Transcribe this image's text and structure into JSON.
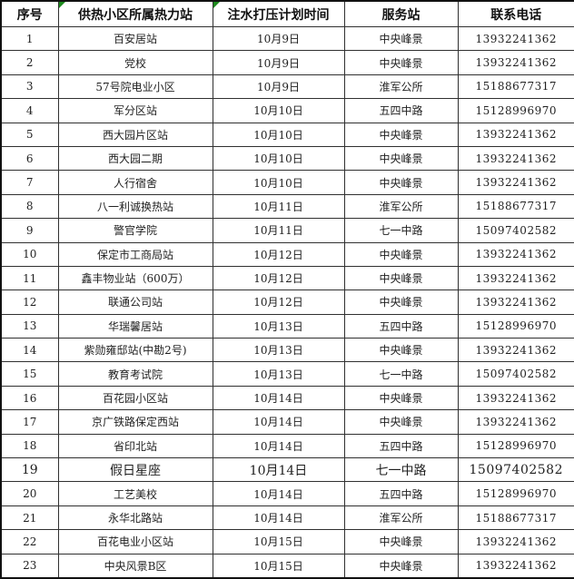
{
  "colors": {
    "grid_line": "#303030",
    "outer_border": "#111111",
    "text": "#1f1f1f",
    "error_indicator_green": "#1d8a1d",
    "background": "#ffffff"
  },
  "table": {
    "columns": [
      {
        "key": "id",
        "label": "序号",
        "error_indicator": false
      },
      {
        "key": "station",
        "label": "供热小区所属热力站",
        "error_indicator": true
      },
      {
        "key": "date",
        "label": "注水打压计划时间",
        "error_indicator": true
      },
      {
        "key": "service",
        "label": "服务站",
        "error_indicator": false
      },
      {
        "key": "phone",
        "label": "联系电话",
        "error_indicator": false
      }
    ],
    "rows": [
      {
        "id": "1",
        "station": "百安居站",
        "date": "10月9日",
        "service": "中央峰景",
        "phone": "13932241362",
        "large": false
      },
      {
        "id": "2",
        "station": "党校",
        "date": "10月9日",
        "service": "中央峰景",
        "phone": "13932241362",
        "large": false
      },
      {
        "id": "3",
        "station": "57号院电业小区",
        "date": "10月9日",
        "service": "淮军公所",
        "phone": "15188677317",
        "large": false
      },
      {
        "id": "4",
        "station": "军分区站",
        "date": "10月10日",
        "service": "五四中路",
        "phone": "15128996970",
        "large": false
      },
      {
        "id": "5",
        "station": "西大园片区站",
        "date": "10月10日",
        "service": "中央峰景",
        "phone": "13932241362",
        "large": false
      },
      {
        "id": "6",
        "station": "西大园二期",
        "date": "10月10日",
        "service": "中央峰景",
        "phone": "13932241362",
        "large": false
      },
      {
        "id": "7",
        "station": "人行宿舍",
        "date": "10月10日",
        "service": "中央峰景",
        "phone": "13932241362",
        "large": false
      },
      {
        "id": "8",
        "station": "八一利诚换热站",
        "date": "10月11日",
        "service": "淮军公所",
        "phone": "15188677317",
        "large": false
      },
      {
        "id": "9",
        "station": "警官学院",
        "date": "10月11日",
        "service": "七一中路",
        "phone": "15097402582",
        "large": false
      },
      {
        "id": "10",
        "station": "保定市工商局站",
        "date": "10月12日",
        "service": "中央峰景",
        "phone": "13932241362",
        "large": false
      },
      {
        "id": "11",
        "station": "鑫丰物业站（600万）",
        "date": "10月12日",
        "service": "中央峰景",
        "phone": "13932241362",
        "large": false
      },
      {
        "id": "12",
        "station": "联通公司站",
        "date": "10月12日",
        "service": "中央峰景",
        "phone": "13932241362",
        "large": false
      },
      {
        "id": "13",
        "station": "华瑞馨居站",
        "date": "10月13日",
        "service": "五四中路",
        "phone": "15128996970",
        "large": false
      },
      {
        "id": "14",
        "station": "紫勋雍邸站(中勘2号)",
        "date": "10月13日",
        "service": "中央峰景",
        "phone": "13932241362",
        "large": false
      },
      {
        "id": "15",
        "station": "教育考试院",
        "date": "10月13日",
        "service": "七一中路",
        "phone": "15097402582",
        "large": false
      },
      {
        "id": "16",
        "station": "百花园小区站",
        "date": "10月14日",
        "service": "中央峰景",
        "phone": "13932241362",
        "large": false
      },
      {
        "id": "17",
        "station": "京广铁路保定西站",
        "date": "10月14日",
        "service": "中央峰景",
        "phone": "13932241362",
        "large": false
      },
      {
        "id": "18",
        "station": "省印北站",
        "date": "10月14日",
        "service": "五四中路",
        "phone": "15128996970",
        "large": false
      },
      {
        "id": "19",
        "station": "假日星座",
        "date": "10月14日",
        "service": "七一中路",
        "phone": "15097402582",
        "large": true
      },
      {
        "id": "20",
        "station": "工艺美校",
        "date": "10月14日",
        "service": "五四中路",
        "phone": "15128996970",
        "large": false
      },
      {
        "id": "21",
        "station": "永华北路站",
        "date": "10月14日",
        "service": "淮军公所",
        "phone": "15188677317",
        "large": false
      },
      {
        "id": "22",
        "station": "百花电业小区站",
        "date": "10月15日",
        "service": "中央峰景",
        "phone": "13932241362",
        "large": false
      },
      {
        "id": "23",
        "station": "中央风景B区",
        "date": "10月15日",
        "service": "中央峰景",
        "phone": "13932241362",
        "large": false
      }
    ]
  }
}
